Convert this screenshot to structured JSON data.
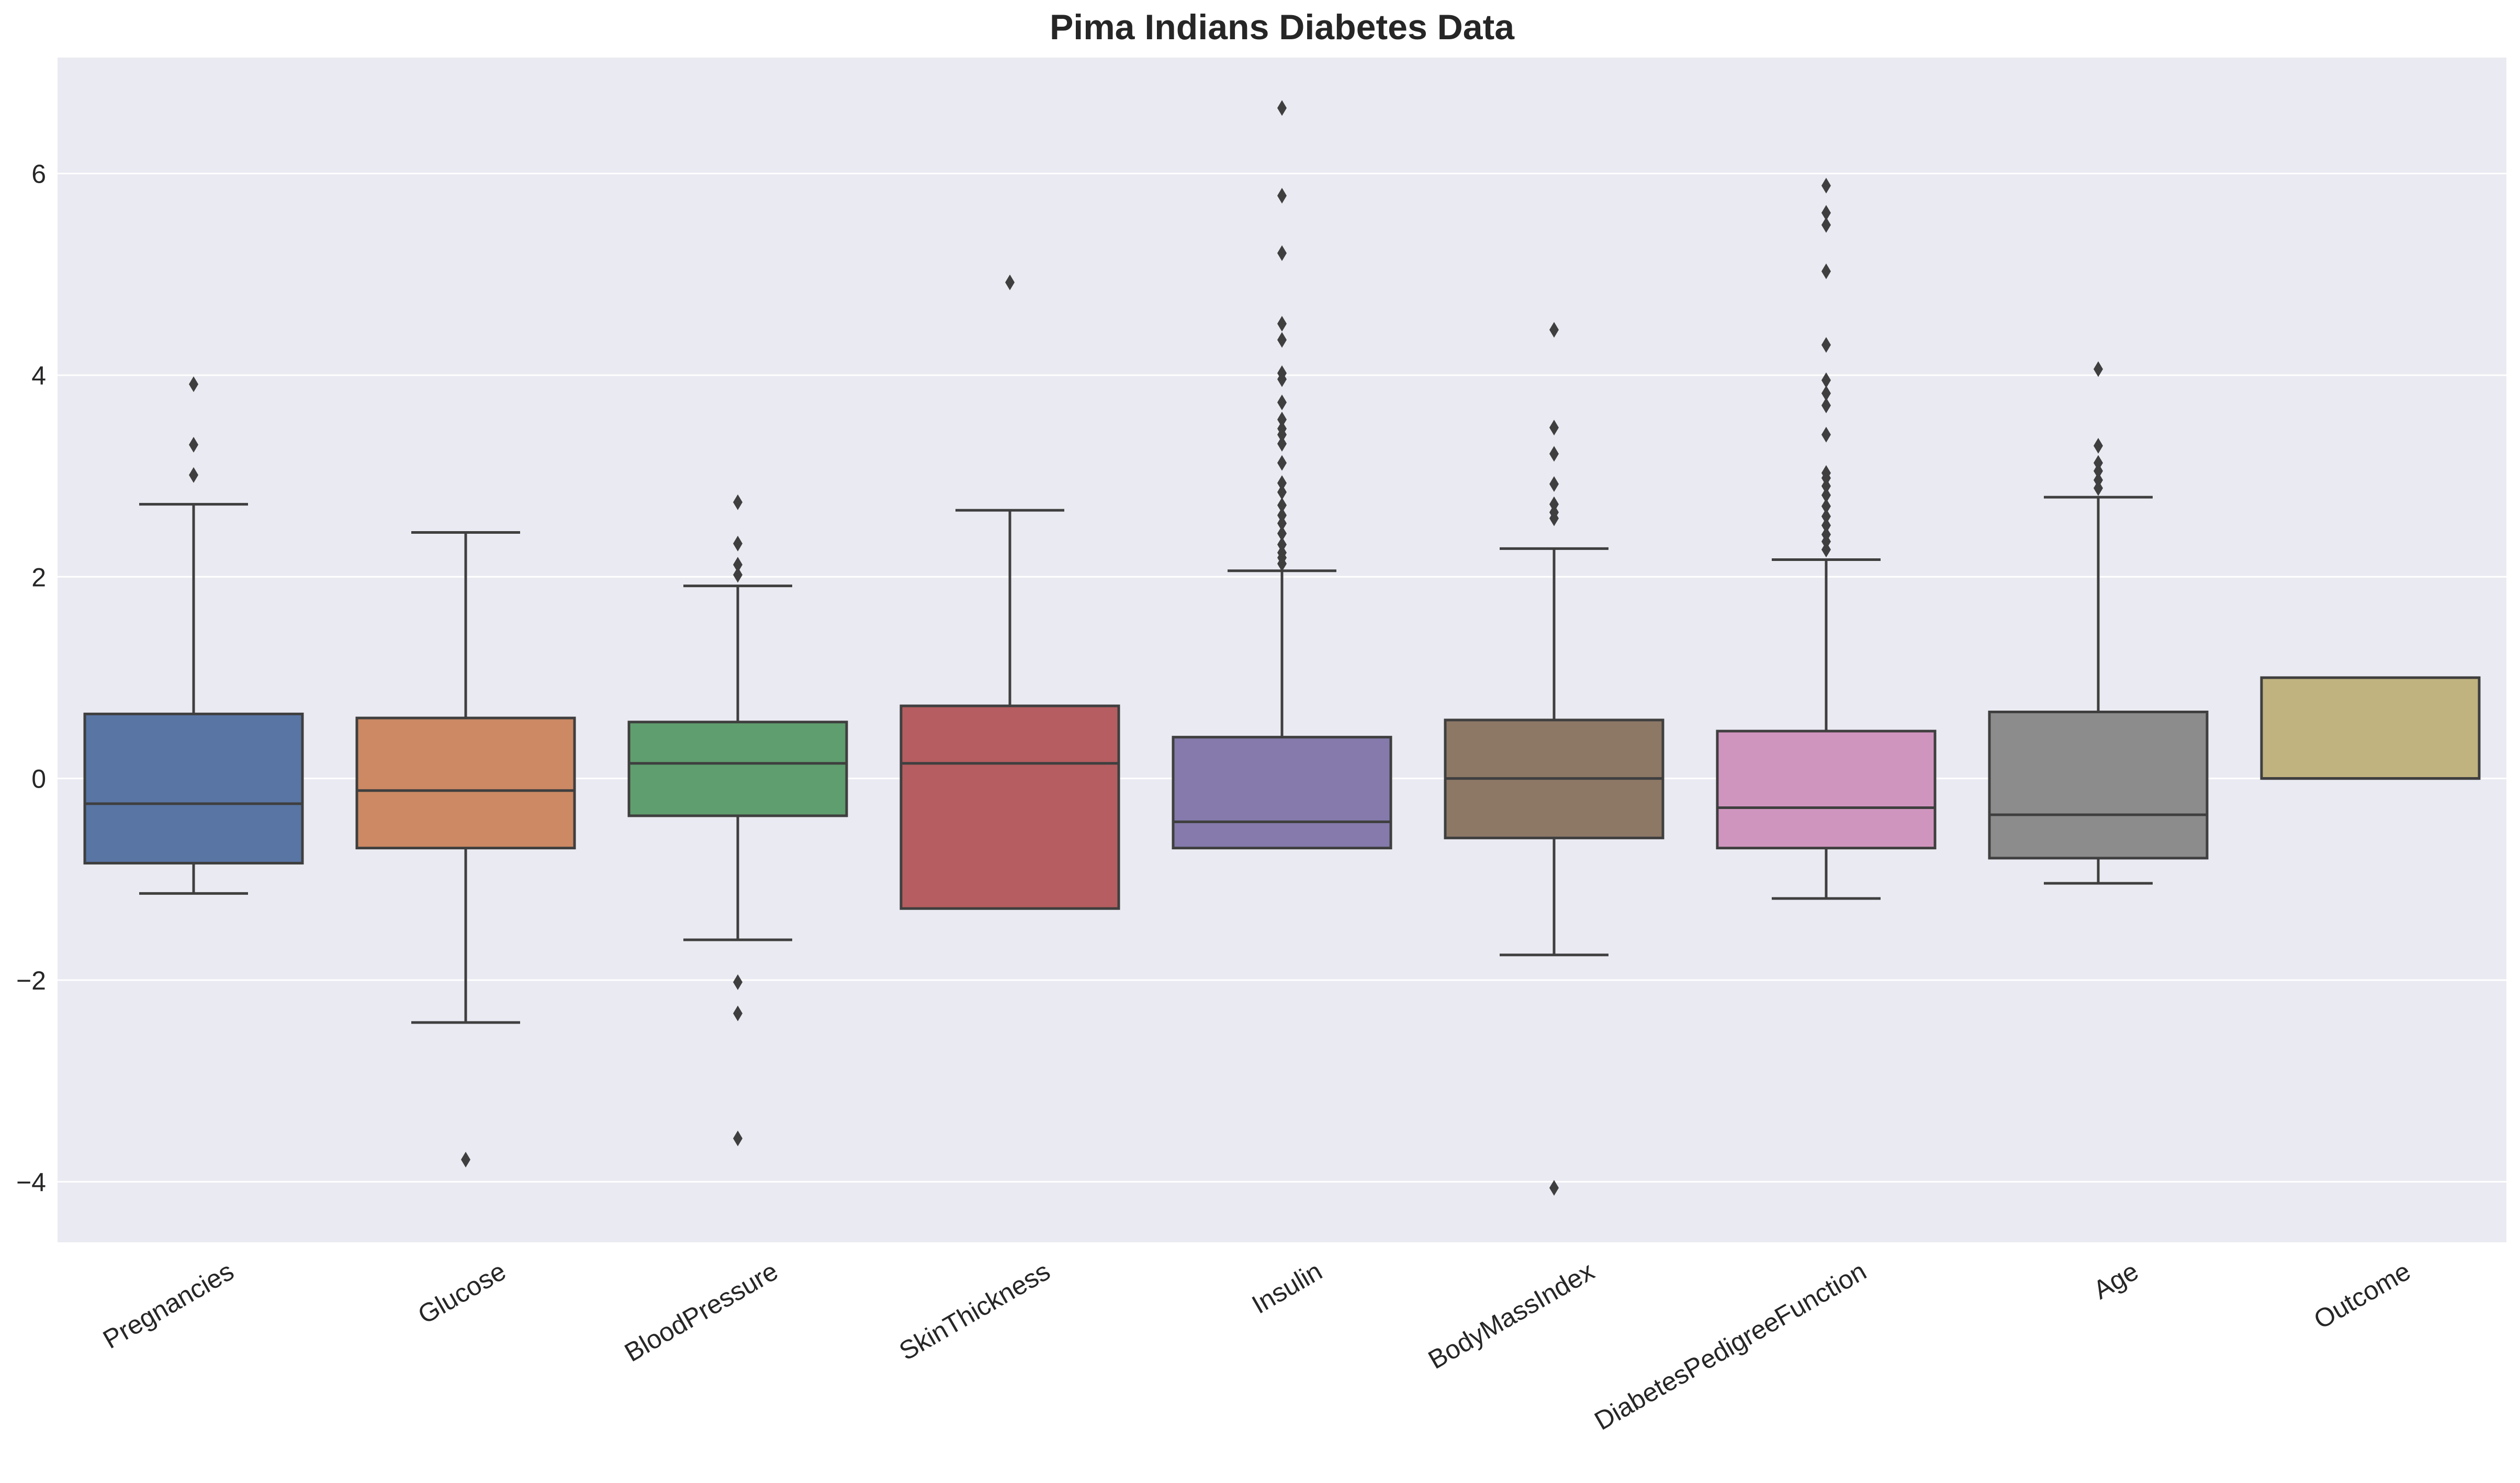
{
  "chart_data": {
    "type": "box",
    "title": "Pima Indians Diabetes Data",
    "xlabel": "",
    "ylabel": "",
    "ylim": [
      -4.6,
      7.15
    ],
    "yticks": [
      {
        "value": 6,
        "label": "6"
      },
      {
        "value": 4,
        "label": "4"
      },
      {
        "value": 2,
        "label": "2"
      },
      {
        "value": 0,
        "label": "0"
      },
      {
        "value": -2,
        "label": "−2"
      },
      {
        "value": -4,
        "label": "−4"
      }
    ],
    "grid": true,
    "legend": "none",
    "background": "#eaeaf2",
    "line_color": "#3f3f3f",
    "boxes": [
      {
        "name": "Pregnancies",
        "color": "#5875a4",
        "whislo": -1.14,
        "q1": -0.84,
        "median": -0.25,
        "q3": 0.64,
        "whishi": 2.72,
        "fliers": [
          3.01,
          3.31,
          3.91
        ]
      },
      {
        "name": "Glucose",
        "color": "#cc8963",
        "whislo": -2.42,
        "q1": -0.69,
        "median": -0.12,
        "q3": 0.6,
        "whishi": 2.44,
        "fliers": [
          -3.78
        ]
      },
      {
        "name": "BloodPressure",
        "color": "#5f9e6e",
        "whislo": -1.6,
        "q1": -0.37,
        "median": 0.15,
        "q3": 0.56,
        "whishi": 1.91,
        "fliers": [
          2.02,
          2.12,
          2.33,
          2.74,
          -2.02,
          -2.33,
          -3.57
        ]
      },
      {
        "name": "SkinThickness",
        "color": "#b55d60",
        "whislo": -1.29,
        "q1": -1.29,
        "median": 0.15,
        "q3": 0.72,
        "whishi": 2.66,
        "fliers": [
          4.92
        ]
      },
      {
        "name": "Insulin",
        "color": "#857aab",
        "whislo": -0.69,
        "q1": -0.69,
        "median": -0.43,
        "q3": 0.41,
        "whishi": 2.06,
        "fliers": [
          2.13,
          2.19,
          2.24,
          2.32,
          2.43,
          2.53,
          2.61,
          2.71,
          2.84,
          2.93,
          3.13,
          3.32,
          3.41,
          3.47,
          3.56,
          3.73,
          3.96,
          4.02,
          4.35,
          4.51,
          5.21,
          5.78,
          6.65
        ]
      },
      {
        "name": "BodyMassIndex",
        "color": "#8d7866",
        "whislo": -1.75,
        "q1": -0.59,
        "median": 0.0,
        "q3": 0.58,
        "whishi": 2.28,
        "fliers": [
          2.58,
          2.64,
          2.72,
          2.92,
          3.22,
          3.48,
          4.45,
          -4.06
        ]
      },
      {
        "name": "DiabetesPedigreeFunction",
        "color": "#d095bf",
        "whislo": -1.19,
        "q1": -0.69,
        "median": -0.29,
        "q3": 0.47,
        "whishi": 2.17,
        "fliers": [
          2.27,
          2.35,
          2.42,
          2.51,
          2.6,
          2.7,
          2.81,
          2.9,
          2.98,
          3.03,
          3.41,
          3.7,
          3.82,
          3.95,
          4.3,
          5.03,
          5.49,
          5.61,
          5.88
        ]
      },
      {
        "name": "Age",
        "color": "#8c8c8c",
        "whislo": -1.04,
        "q1": -0.79,
        "median": -0.36,
        "q3": 0.66,
        "whishi": 2.79,
        "fliers": [
          2.88,
          2.96,
          3.05,
          3.13,
          3.3,
          4.06
        ]
      },
      {
        "name": "Outcome",
        "color": "#c1b37f",
        "whislo": 0.0,
        "q1": 0.0,
        "median": 0.0,
        "q3": 1.0,
        "whishi": 1.0,
        "fliers": []
      }
    ]
  }
}
